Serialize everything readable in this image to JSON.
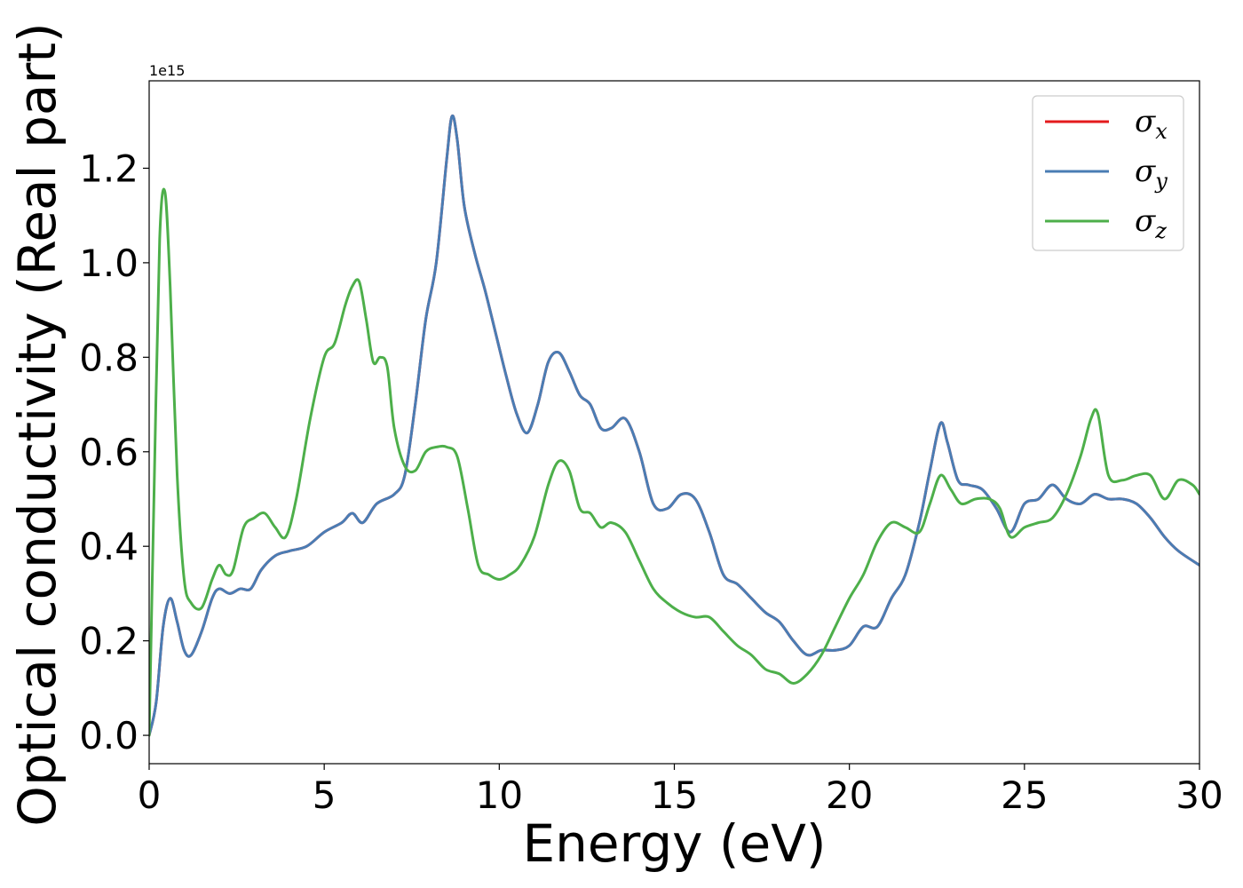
{
  "chart_data": {
    "type": "line",
    "title": "",
    "xlabel": "Energy (eV)",
    "ylabel": "Optical conductivity (Real part)",
    "y_offset_text": "1e15",
    "xlim": [
      0,
      30
    ],
    "ylim": [
      -0.06,
      1.385
    ],
    "xticks": [
      0,
      5,
      10,
      15,
      20,
      25,
      30
    ],
    "xtick_labels": [
      "0",
      "5",
      "10",
      "15",
      "20",
      "25",
      "30"
    ],
    "yticks": [
      0.0,
      0.2,
      0.4,
      0.6,
      0.8,
      1.0,
      1.2
    ],
    "ytick_labels": [
      "0.0",
      "0.2",
      "0.4",
      "0.6",
      "0.8",
      "1.0",
      "1.2"
    ],
    "grid": false,
    "legend_position": "top-right",
    "series": [
      {
        "name": "σx",
        "symbol": "σ",
        "subscript": "x",
        "color": "#e41a1c",
        "x": [
          0,
          0.2,
          0.4,
          0.6,
          0.8,
          1.0,
          1.2,
          1.5,
          1.8,
          2.0,
          2.3,
          2.6,
          2.9,
          3.2,
          3.6,
          4.0,
          4.5,
          5.0,
          5.5,
          5.8,
          6.1,
          6.5,
          7.0,
          7.3,
          7.6,
          7.9,
          8.2,
          8.5,
          8.65,
          8.8,
          9.0,
          9.3,
          9.6,
          9.9,
          10.2,
          10.5,
          10.8,
          11.1,
          11.4,
          11.7,
          12.0,
          12.3,
          12.6,
          12.9,
          13.2,
          13.6,
          14.0,
          14.4,
          14.8,
          15.2,
          15.6,
          16.0,
          16.4,
          16.8,
          17.2,
          17.6,
          18.0,
          18.4,
          18.8,
          19.2,
          19.6,
          20.0,
          20.4,
          20.8,
          21.2,
          21.6,
          22.0,
          22.3,
          22.6,
          22.8,
          23.1,
          23.4,
          23.8,
          24.2,
          24.6,
          25.0,
          25.4,
          25.8,
          26.2,
          26.6,
          27.0,
          27.4,
          27.8,
          28.2,
          28.6,
          29.0,
          29.4,
          30.0
        ],
        "y": [
          0.0,
          0.07,
          0.23,
          0.29,
          0.24,
          0.18,
          0.17,
          0.22,
          0.29,
          0.31,
          0.3,
          0.31,
          0.31,
          0.35,
          0.38,
          0.39,
          0.4,
          0.43,
          0.45,
          0.47,
          0.45,
          0.49,
          0.51,
          0.55,
          0.7,
          0.88,
          1.0,
          1.22,
          1.31,
          1.26,
          1.12,
          1.02,
          0.94,
          0.85,
          0.76,
          0.68,
          0.64,
          0.7,
          0.79,
          0.81,
          0.77,
          0.72,
          0.7,
          0.65,
          0.65,
          0.67,
          0.6,
          0.49,
          0.48,
          0.51,
          0.5,
          0.43,
          0.34,
          0.32,
          0.29,
          0.26,
          0.24,
          0.2,
          0.17,
          0.18,
          0.18,
          0.19,
          0.23,
          0.23,
          0.29,
          0.34,
          0.45,
          0.56,
          0.66,
          0.62,
          0.54,
          0.53,
          0.52,
          0.48,
          0.43,
          0.49,
          0.5,
          0.53,
          0.5,
          0.49,
          0.51,
          0.5,
          0.5,
          0.49,
          0.46,
          0.42,
          0.39,
          0.36
        ]
      },
      {
        "name": "σy",
        "symbol": "σ",
        "subscript": "y",
        "color": "#4a7db4",
        "x": [
          0,
          0.2,
          0.4,
          0.6,
          0.8,
          1.0,
          1.2,
          1.5,
          1.8,
          2.0,
          2.3,
          2.6,
          2.9,
          3.2,
          3.6,
          4.0,
          4.5,
          5.0,
          5.5,
          5.8,
          6.1,
          6.5,
          7.0,
          7.3,
          7.6,
          7.9,
          8.2,
          8.5,
          8.65,
          8.8,
          9.0,
          9.3,
          9.6,
          9.9,
          10.2,
          10.5,
          10.8,
          11.1,
          11.4,
          11.7,
          12.0,
          12.3,
          12.6,
          12.9,
          13.2,
          13.6,
          14.0,
          14.4,
          14.8,
          15.2,
          15.6,
          16.0,
          16.4,
          16.8,
          17.2,
          17.6,
          18.0,
          18.4,
          18.8,
          19.2,
          19.6,
          20.0,
          20.4,
          20.8,
          21.2,
          21.6,
          22.0,
          22.3,
          22.6,
          22.8,
          23.1,
          23.4,
          23.8,
          24.2,
          24.6,
          25.0,
          25.4,
          25.8,
          26.2,
          26.6,
          27.0,
          27.4,
          27.8,
          28.2,
          28.6,
          29.0,
          29.4,
          30.0
        ],
        "y": [
          0.0,
          0.07,
          0.23,
          0.29,
          0.24,
          0.18,
          0.17,
          0.22,
          0.29,
          0.31,
          0.3,
          0.31,
          0.31,
          0.35,
          0.38,
          0.39,
          0.4,
          0.43,
          0.45,
          0.47,
          0.45,
          0.49,
          0.51,
          0.55,
          0.7,
          0.88,
          1.0,
          1.22,
          1.31,
          1.26,
          1.12,
          1.02,
          0.94,
          0.85,
          0.76,
          0.68,
          0.64,
          0.7,
          0.79,
          0.81,
          0.77,
          0.72,
          0.7,
          0.65,
          0.65,
          0.67,
          0.6,
          0.49,
          0.48,
          0.51,
          0.5,
          0.43,
          0.34,
          0.32,
          0.29,
          0.26,
          0.24,
          0.2,
          0.17,
          0.18,
          0.18,
          0.19,
          0.23,
          0.23,
          0.29,
          0.34,
          0.45,
          0.56,
          0.66,
          0.62,
          0.54,
          0.53,
          0.52,
          0.48,
          0.43,
          0.49,
          0.5,
          0.53,
          0.5,
          0.49,
          0.51,
          0.5,
          0.5,
          0.49,
          0.46,
          0.42,
          0.39,
          0.36
        ]
      },
      {
        "name": "σz",
        "symbol": "σ",
        "subscript": "z",
        "color": "#4daf4a",
        "x": [
          0,
          0.15,
          0.3,
          0.45,
          0.6,
          0.8,
          1.0,
          1.2,
          1.5,
          1.8,
          2.0,
          2.2,
          2.4,
          2.7,
          3.0,
          3.3,
          3.6,
          3.9,
          4.2,
          4.6,
          5.0,
          5.3,
          5.6,
          5.8,
          6.0,
          6.2,
          6.4,
          6.6,
          6.8,
          7.0,
          7.3,
          7.6,
          7.9,
          8.2,
          8.5,
          8.8,
          9.1,
          9.4,
          9.7,
          10.0,
          10.3,
          10.6,
          11.0,
          11.4,
          11.7,
          12.0,
          12.3,
          12.6,
          12.9,
          13.2,
          13.6,
          14.0,
          14.4,
          14.8,
          15.2,
          15.6,
          16.0,
          16.4,
          16.8,
          17.2,
          17.6,
          18.0,
          18.4,
          18.8,
          19.2,
          19.6,
          20.0,
          20.4,
          20.8,
          21.2,
          21.6,
          22.0,
          22.3,
          22.6,
          22.9,
          23.2,
          23.6,
          24.0,
          24.3,
          24.6,
          25.0,
          25.4,
          25.8,
          26.2,
          26.6,
          26.9,
          27.1,
          27.4,
          27.8,
          28.2,
          28.6,
          29.0,
          29.4,
          29.8,
          30.0
        ],
        "y": [
          0.0,
          0.55,
          1.05,
          1.15,
          0.95,
          0.55,
          0.33,
          0.28,
          0.27,
          0.33,
          0.36,
          0.34,
          0.35,
          0.44,
          0.46,
          0.47,
          0.44,
          0.42,
          0.5,
          0.67,
          0.8,
          0.83,
          0.91,
          0.95,
          0.96,
          0.88,
          0.79,
          0.8,
          0.78,
          0.65,
          0.57,
          0.56,
          0.6,
          0.61,
          0.61,
          0.59,
          0.48,
          0.36,
          0.34,
          0.33,
          0.34,
          0.36,
          0.42,
          0.53,
          0.58,
          0.56,
          0.48,
          0.47,
          0.44,
          0.45,
          0.43,
          0.37,
          0.31,
          0.28,
          0.26,
          0.25,
          0.25,
          0.22,
          0.19,
          0.17,
          0.14,
          0.13,
          0.11,
          0.13,
          0.17,
          0.23,
          0.29,
          0.34,
          0.41,
          0.45,
          0.44,
          0.43,
          0.49,
          0.55,
          0.52,
          0.49,
          0.5,
          0.5,
          0.48,
          0.42,
          0.44,
          0.45,
          0.46,
          0.51,
          0.59,
          0.67,
          0.68,
          0.55,
          0.54,
          0.55,
          0.55,
          0.5,
          0.54,
          0.53,
          0.51
        ]
      }
    ]
  }
}
